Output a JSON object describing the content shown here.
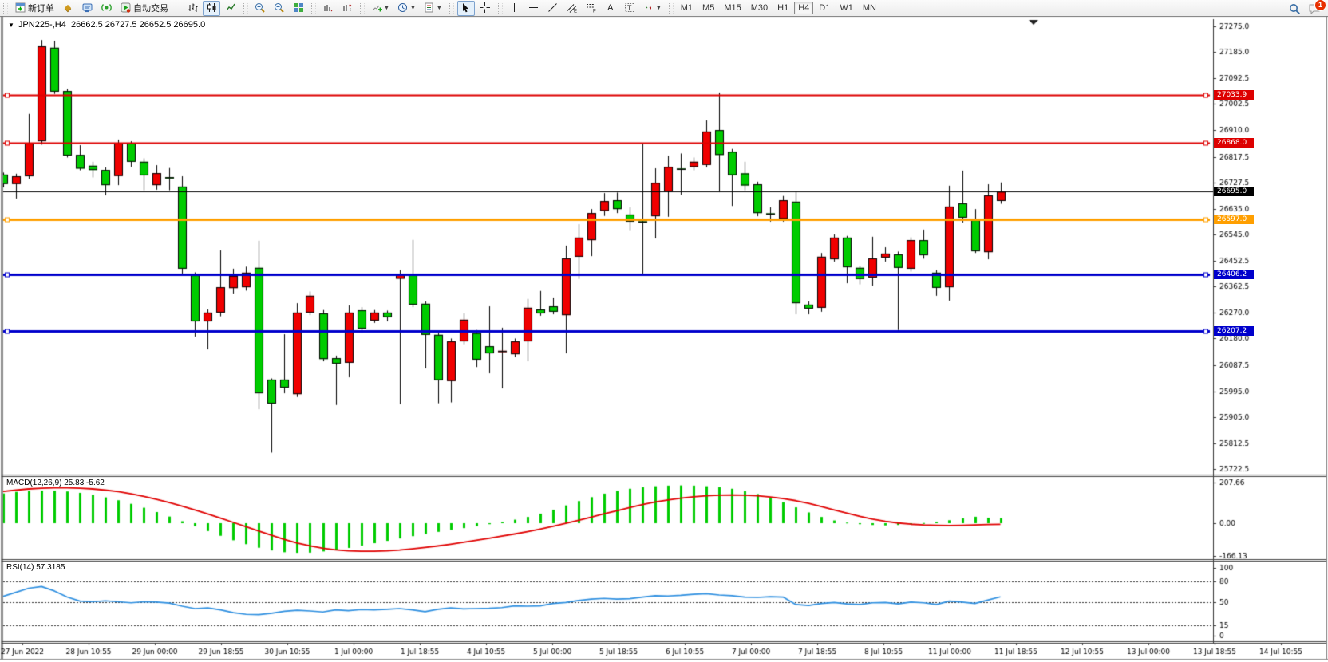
{
  "toolbar": {
    "new_order_label": "新订单",
    "autotrading_label": "自动交易",
    "timeframe_labels": [
      "M1",
      "M5",
      "M15",
      "M30",
      "H1",
      "H4",
      "D1",
      "W1",
      "MN"
    ],
    "active_timeframe": "H4",
    "notification_badge": "1"
  },
  "chart": {
    "title_dropdown_icon": "▼",
    "symbol_period": "JPN225-,H4",
    "ohlc_text": "26662.5 26727.5 26652.5 26695.0",
    "macd_label": "MACD(12,26,9) 25.83 -5.62",
    "rsi_label": "RSI(14) 57.3185"
  },
  "chart_data": {
    "type": "candlestick",
    "symbol": "JPN225-",
    "period": "H4",
    "current": {
      "open": 26662.5,
      "high": 26727.5,
      "low": 26652.5,
      "close": 26695.0
    },
    "bull_color": "#f00000",
    "bear_color": "#00cc00",
    "y_ticks": [
      27275.0,
      27185.0,
      27092.5,
      27002.5,
      26910.0,
      26817.5,
      26727.5,
      26635.0,
      26545.0,
      26452.5,
      26362.5,
      26270.0,
      26180.0,
      26087.5,
      25995.0,
      25905.0,
      25812.5,
      25722.5
    ],
    "ylim": [
      25722.5,
      27275.0
    ],
    "x_labels": [
      "27 Jun 2022",
      "28 Jun 10:55",
      "29 Jun 00:00",
      "29 Jun 18:55",
      "30 Jun 10:55",
      "1 Jul 00:00",
      "1 Jul 18:55",
      "4 Jul 10:55",
      "5 Jul 00:00",
      "5 Jul 18:55",
      "6 Jul 10:55",
      "7 Jul 00:00",
      "7 Jul 18:55",
      "8 Jul 10:55",
      "11 Jul 00:00",
      "11 Jul 18:55",
      "12 Jul 10:55",
      "13 Jul 00:00",
      "13 Jul 18:55",
      "14 Jul 10:55"
    ],
    "candles": [
      [
        26755,
        26762,
        26710,
        26722
      ],
      [
        26722,
        26758,
        26671,
        26749
      ],
      [
        26749,
        26968,
        26740,
        26866
      ],
      [
        26872,
        27227,
        26860,
        27205
      ],
      [
        27200,
        27224,
        27038,
        27046
      ],
      [
        27048,
        27056,
        26815,
        26822
      ],
      [
        26824,
        26858,
        26770,
        26776
      ],
      [
        26786,
        26800,
        26745,
        26771
      ],
      [
        26771,
        26780,
        26682,
        26718
      ],
      [
        26750,
        26878,
        26718,
        26866
      ],
      [
        26866,
        26872,
        26782,
        26800
      ],
      [
        26800,
        26812,
        26700,
        26752
      ],
      [
        26718,
        26788,
        26702,
        26760
      ],
      [
        26746,
        26778,
        26700,
        26744
      ],
      [
        26713,
        26749,
        26408,
        26425
      ],
      [
        26402,
        26412,
        26187,
        26240
      ],
      [
        26240,
        26282,
        26142,
        26271
      ],
      [
        26271,
        26489,
        26258,
        26360
      ],
      [
        26357,
        26425,
        26338,
        26400
      ],
      [
        26360,
        26432,
        26348,
        26411
      ],
      [
        26428,
        26523,
        25932,
        25988
      ],
      [
        26036,
        26040,
        25780,
        25952
      ],
      [
        26036,
        26195,
        25988,
        26008
      ],
      [
        25985,
        26304,
        25975,
        26271
      ],
      [
        26271,
        26345,
        26262,
        26330
      ],
      [
        26268,
        26280,
        26100,
        26108
      ],
      [
        26111,
        26120,
        25947,
        26092
      ],
      [
        26095,
        26296,
        26044,
        26271
      ],
      [
        26279,
        26290,
        26200,
        26215
      ],
      [
        26243,
        26280,
        26235,
        26271
      ],
      [
        26271,
        26278,
        26240,
        26255
      ],
      [
        26390,
        26420,
        25950,
        26407
      ],
      [
        26406,
        26526,
        26290,
        26299
      ],
      [
        26302,
        26310,
        26075,
        26193
      ],
      [
        26193,
        26200,
        25953,
        26034
      ],
      [
        26031,
        26180,
        25956,
        26170
      ],
      [
        26170,
        26268,
        26160,
        26246
      ],
      [
        26199,
        26210,
        26080,
        26106
      ],
      [
        26153,
        26293,
        26058,
        26128
      ],
      [
        26133,
        26218,
        26005,
        26137
      ],
      [
        26125,
        26180,
        26115,
        26170
      ],
      [
        26170,
        26319,
        26100,
        26288
      ],
      [
        26282,
        26347,
        26260,
        26268
      ],
      [
        26293,
        26324,
        26265,
        26274
      ],
      [
        26262,
        26506,
        26128,
        26461
      ],
      [
        26467,
        26581,
        26389,
        26534
      ],
      [
        26525,
        26634,
        26469,
        26620
      ],
      [
        26628,
        26690,
        26610,
        26662
      ],
      [
        26665,
        26692,
        26620,
        26634
      ],
      [
        26615,
        26640,
        26560,
        26590
      ],
      [
        26591,
        26864,
        26408,
        26589
      ],
      [
        26609,
        26777,
        26531,
        26726
      ],
      [
        26695,
        26821,
        26607,
        26782
      ],
      [
        26776,
        26829,
        26684,
        26774
      ],
      [
        26782,
        26815,
        26770,
        26800
      ],
      [
        26789,
        26945,
        26780,
        26906
      ],
      [
        26911,
        27043,
        26693,
        26824
      ],
      [
        26835,
        26845,
        26645,
        26753
      ],
      [
        26759,
        26800,
        26700,
        26717
      ],
      [
        26721,
        26730,
        26609,
        26620
      ],
      [
        26619,
        26640,
        26590,
        26615
      ],
      [
        26600,
        26680,
        26590,
        26665
      ],
      [
        26660,
        26693,
        26265,
        26304
      ],
      [
        26299,
        26310,
        26265,
        26285
      ],
      [
        26288,
        26480,
        26274,
        26467
      ],
      [
        26458,
        26545,
        26450,
        26534
      ],
      [
        26534,
        26540,
        26374,
        26430
      ],
      [
        26428,
        26435,
        26370,
        26389
      ],
      [
        26394,
        26537,
        26365,
        26461
      ],
      [
        26464,
        26500,
        26450,
        26478
      ],
      [
        26475,
        26485,
        26210,
        26428
      ],
      [
        26425,
        26535,
        26415,
        26525
      ],
      [
        26525,
        26562,
        26460,
        26472
      ],
      [
        26411,
        26420,
        26330,
        26358
      ],
      [
        26360,
        26716,
        26313,
        26643
      ],
      [
        26654,
        26769,
        26587,
        26604
      ],
      [
        26595,
        26634,
        26480,
        26486
      ],
      [
        26483,
        26721,
        26458,
        26682
      ],
      [
        26662.5,
        26727.5,
        26652.5,
        26695.0
      ]
    ],
    "levels": [
      {
        "price": 27033.9,
        "label": "27033.9",
        "color": "#dd0000",
        "width": 2
      },
      {
        "price": 26868.0,
        "label": "26868.0",
        "color": "#dd0000",
        "width": 2
      },
      {
        "price": 26597.0,
        "label": "26597.0",
        "color": "#ff9f00",
        "width": 3
      },
      {
        "price": 26406.2,
        "label": "26406.2",
        "color": "#0000cc",
        "width": 3
      },
      {
        "price": 26207.2,
        "label": "26207.2",
        "color": "#0000cc",
        "width": 3
      }
    ],
    "current_price_line": {
      "price": 26695.0,
      "label": "26695.0",
      "color": "#000000"
    },
    "macd": {
      "params": [
        12,
        26,
        9
      ],
      "value": 25.83,
      "signal_value": -5.62,
      "scale_ticks": [
        207.66,
        0.0,
        -166.13
      ],
      "histogram_color": "#00cc00",
      "signal_color": "#e00000",
      "histogram": [
        152,
        160,
        165,
        167,
        166,
        162,
        155,
        145,
        132,
        117,
        99,
        79,
        57,
        34,
        10,
        -15,
        -40,
        -64,
        -87,
        -107,
        -125,
        -139,
        -148,
        -151,
        -150,
        -144,
        -136,
        -126,
        -114,
        -102,
        -90,
        -78,
        -66,
        -55,
        -44,
        -34,
        -25,
        -15,
        -5,
        6,
        18,
        32,
        49,
        69,
        91,
        113,
        133,
        151,
        165,
        176,
        184,
        189,
        192,
        193,
        192,
        189,
        184,
        176,
        164,
        149,
        130,
        107,
        81,
        55,
        32,
        14,
        3,
        -5,
        -9,
        -11,
        -9,
        -4,
        1,
        7,
        15,
        25,
        33,
        28,
        25.83
      ],
      "signal_line": [
        162,
        169,
        175,
        179,
        181,
        181,
        179,
        175,
        169,
        161,
        150,
        137,
        122,
        105,
        87,
        68,
        47,
        26,
        4,
        -18,
        -40,
        -62,
        -83,
        -101,
        -116,
        -128,
        -136,
        -141,
        -143,
        -143,
        -141,
        -137,
        -131,
        -124,
        -116,
        -107,
        -97,
        -87,
        -77,
        -66,
        -55,
        -43,
        -30,
        -16,
        -1,
        15,
        31,
        48,
        64,
        80,
        95,
        108,
        119,
        128,
        135,
        140,
        143,
        144,
        143,
        140,
        134,
        126,
        115,
        101,
        85,
        68,
        51,
        35,
        21,
        10,
        1,
        -5,
        -9,
        -11,
        -12,
        -11,
        -9,
        -7,
        -5.62
      ]
    },
    "rsi": {
      "period": 14,
      "value": 57.3185,
      "scale_ticks": [
        100,
        80,
        50,
        15,
        0
      ],
      "dashed_levels": [
        80,
        50,
        15
      ],
      "color": "#2e8fe0",
      "values": [
        58,
        64,
        70,
        72.5,
        66,
        57,
        51,
        50,
        51.5,
        50,
        48.5,
        50,
        49.5,
        48,
        43.5,
        40,
        41,
        38,
        34,
        31.5,
        31,
        33,
        36,
        37.5,
        36.5,
        35,
        38,
        37,
        38.5,
        38,
        39,
        40,
        38,
        35.5,
        39,
        41,
        39.5,
        40,
        40.5,
        41.5,
        44,
        43.5,
        44,
        47.5,
        49,
        52,
        54,
        55,
        54,
        54.5,
        57,
        59,
        58.5,
        59.5,
        61,
        62,
        60,
        59,
        57,
        56.5,
        57.5,
        57,
        46,
        44.5,
        47.5,
        49,
        47,
        46,
        48.5,
        49,
        47,
        49.5,
        48.5,
        46,
        51,
        49.5,
        47.5,
        52.5,
        57.32
      ]
    }
  }
}
